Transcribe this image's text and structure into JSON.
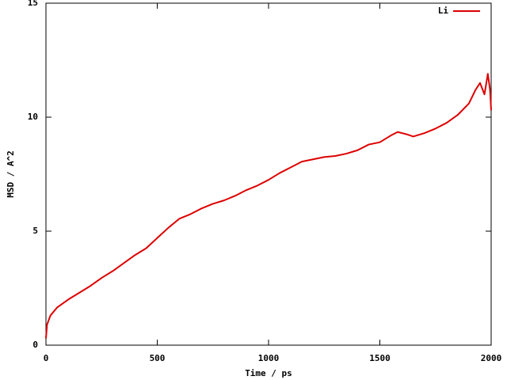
{
  "chart_data": {
    "type": "line",
    "xlabel": "Time / ps",
    "ylabel": "MSD / A^2",
    "x": [
      0,
      5,
      20,
      50,
      100,
      150,
      200,
      250,
      300,
      350,
      400,
      450,
      500,
      550,
      600,
      650,
      700,
      750,
      800,
      850,
      900,
      950,
      1000,
      1050,
      1100,
      1150,
      1200,
      1250,
      1300,
      1350,
      1400,
      1450,
      1500,
      1550,
      1580,
      1620,
      1650,
      1700,
      1750,
      1800,
      1850,
      1900,
      1930,
      1950,
      1970,
      1985,
      1995,
      2000
    ],
    "series": [
      {
        "name": "Li",
        "color": "#dd0000",
        "values": [
          0.3,
          0.9,
          1.3,
          1.65,
          2.0,
          2.3,
          2.6,
          2.95,
          3.25,
          3.6,
          3.95,
          4.25,
          4.7,
          5.15,
          5.55,
          5.75,
          6.0,
          6.2,
          6.35,
          6.55,
          6.8,
          7.0,
          7.25,
          7.55,
          7.8,
          8.05,
          8.15,
          8.25,
          8.3,
          8.4,
          8.55,
          8.8,
          8.9,
          9.2,
          9.35,
          9.25,
          9.15,
          9.3,
          9.5,
          9.75,
          10.1,
          10.6,
          11.2,
          11.5,
          11.0,
          11.9,
          11.2,
          10.3
        ]
      }
    ],
    "xlim": [
      0,
      2000
    ],
    "xticks": [
      0,
      500,
      1000,
      1500,
      2000
    ],
    "ylim": [
      0,
      15
    ],
    "yticks": [
      0,
      5,
      10,
      15
    ],
    "legend": "upper right"
  }
}
